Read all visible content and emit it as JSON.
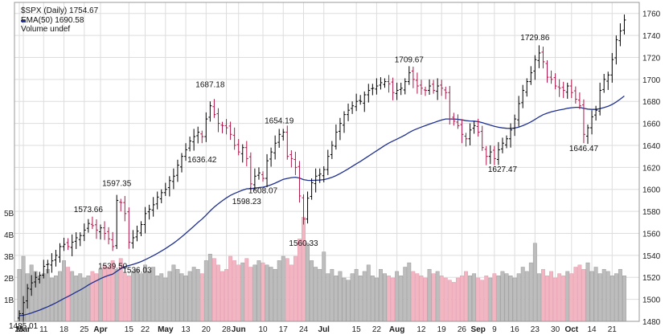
{
  "chart_data": {
    "type": "candlestick-ohlc-with-volume",
    "title": "$SPX (Daily) 1754.67",
    "legend": [
      {
        "text": "EMA(50) 1690.58",
        "color": "#1f2f8f"
      },
      {
        "text": "Volume undef",
        "color": "#888888"
      }
    ],
    "colors": {
      "up": "#000000",
      "down": "#b0144a",
      "ema": "#1f2f8f",
      "vol_up": "#bdbdbd",
      "vol_down": "#f2b6c2",
      "grid": "#dddddd"
    },
    "price_axis": {
      "min": 1480,
      "max": 1770,
      "ticks": [
        1480,
        1500,
        1520,
        1540,
        1560,
        1580,
        1600,
        1620,
        1640,
        1660,
        1680,
        1700,
        1720,
        1740,
        1760
      ]
    },
    "volume_axis": {
      "ticks": [
        {
          "v": 1,
          "label": "1B"
        },
        {
          "v": 2,
          "label": "2B"
        },
        {
          "v": 3,
          "label": "3B"
        },
        {
          "v": 4,
          "label": "4B"
        },
        {
          "v": 5,
          "label": "5B"
        }
      ]
    },
    "x_labels": [
      {
        "i": 0,
        "text": "25"
      },
      {
        "i": 1,
        "text": "Mar",
        "bold": true
      },
      {
        "i": 6,
        "text": "11"
      },
      {
        "i": 11,
        "text": "18"
      },
      {
        "i": 16,
        "text": "25"
      },
      {
        "i": 20,
        "text": "Apr",
        "bold": true
      },
      {
        "i": 27,
        "text": "15"
      },
      {
        "i": 31,
        "text": "22"
      },
      {
        "i": 36,
        "text": "May",
        "bold": true
      },
      {
        "i": 41,
        "text": "13"
      },
      {
        "i": 46,
        "text": "20"
      },
      {
        "i": 51,
        "text": "28"
      },
      {
        "i": 54,
        "text": "Jun",
        "bold": true
      },
      {
        "i": 60,
        "text": "10"
      },
      {
        "i": 65,
        "text": "17"
      },
      {
        "i": 70,
        "text": "24"
      },
      {
        "i": 75,
        "text": "Jul",
        "bold": true
      },
      {
        "i": 83,
        "text": "15"
      },
      {
        "i": 88,
        "text": "22"
      },
      {
        "i": 93,
        "text": "Aug",
        "bold": true
      },
      {
        "i": 99,
        "text": "12"
      },
      {
        "i": 104,
        "text": "19"
      },
      {
        "i": 109,
        "text": "26"
      },
      {
        "i": 113,
        "text": "Sep",
        "bold": true
      },
      {
        "i": 117,
        "text": "9"
      },
      {
        "i": 122,
        "text": "16"
      },
      {
        "i": 127,
        "text": "23"
      },
      {
        "i": 132,
        "text": "30"
      },
      {
        "i": 136,
        "text": "Oct",
        "bold": true
      },
      {
        "i": 141,
        "text": "14"
      },
      {
        "i": 146,
        "text": "21"
      }
    ],
    "annotations": [
      {
        "i": 1,
        "value": 1485.01,
        "text": "1485.01",
        "pos": "below"
      },
      {
        "i": 17,
        "value": 1573.66,
        "text": "1573.66",
        "pos": "above"
      },
      {
        "i": 24,
        "value": 1597.35,
        "text": "1597.35",
        "pos": "above"
      },
      {
        "i": 23,
        "value": 1539.5,
        "text": "1539.50",
        "pos": "below"
      },
      {
        "i": 29,
        "value": 1536.03,
        "text": "1536.03",
        "pos": "below"
      },
      {
        "i": 47,
        "value": 1687.18,
        "text": "1687.18",
        "pos": "above"
      },
      {
        "i": 45,
        "value": 1636.42,
        "text": "1636.42",
        "pos": "below"
      },
      {
        "i": 56,
        "value": 1598.23,
        "text": "1598.23",
        "pos": "below"
      },
      {
        "i": 60,
        "value": 1608.07,
        "text": "1608.07",
        "pos": "below"
      },
      {
        "i": 64,
        "value": 1654.19,
        "text": "1654.19",
        "pos": "above"
      },
      {
        "i": 70,
        "value": 1560.33,
        "text": "1560.33",
        "pos": "below"
      },
      {
        "i": 96,
        "value": 1709.67,
        "text": "1709.67",
        "pos": "above"
      },
      {
        "i": 119,
        "value": 1627.47,
        "text": "1627.47",
        "pos": "below"
      },
      {
        "i": 127,
        "value": 1729.86,
        "text": "1729.86",
        "pos": "above"
      },
      {
        "i": 139,
        "value": 1646.47,
        "text": "1646.47",
        "pos": "below"
      }
    ],
    "close": [
      1487,
      1497,
      1510,
      1515,
      1520,
      1522,
      1530,
      1532,
      1535,
      1540,
      1548,
      1550,
      1548,
      1552,
      1556,
      1558,
      1563,
      1569,
      1567,
      1563,
      1565,
      1560,
      1555,
      1548,
      1590,
      1588,
      1578,
      1552,
      1556,
      1562,
      1568,
      1578,
      1582,
      1586,
      1593,
      1597,
      1600,
      1608,
      1612,
      1622,
      1630,
      1636,
      1644,
      1648,
      1652,
      1648,
      1664,
      1676,
      1668,
      1660,
      1658,
      1656,
      1650,
      1640,
      1634,
      1638,
      1628,
      1605,
      1612,
      1615,
      1610,
      1626,
      1634,
      1642,
      1650,
      1652,
      1630,
      1628,
      1620,
      1594,
      1573,
      1592,
      1606,
      1612,
      1614,
      1618,
      1630,
      1640,
      1652,
      1660,
      1668,
      1672,
      1676,
      1680,
      1680,
      1686,
      1690,
      1692,
      1694,
      1697,
      1698,
      1696,
      1688,
      1690,
      1692,
      1698,
      1706,
      1700,
      1694,
      1692,
      1690,
      1694,
      1690,
      1694,
      1692,
      1688,
      1664,
      1662,
      1658,
      1650,
      1646,
      1654,
      1658,
      1652,
      1638,
      1630,
      1634,
      1628,
      1636,
      1642,
      1646,
      1654,
      1664,
      1678,
      1690,
      1698,
      1706,
      1718,
      1724,
      1716,
      1702,
      1700,
      1694,
      1692,
      1690,
      1694,
      1688,
      1682,
      1676,
      1650,
      1656,
      1666,
      1672,
      1690,
      1700,
      1704,
      1718,
      1736,
      1744,
      1754
    ]
  },
  "volume": [
    2.4,
    3.0,
    2.2,
    2.6,
    2.3,
    2.1,
    2.2,
    2.4,
    2.0,
    2.1,
    2.3,
    2.8,
    2.5,
    2.3,
    2.1,
    2.2,
    2.0,
    2.1,
    2.3,
    2.2,
    2.4,
    2.6,
    2.5,
    2.8,
    2.4,
    2.9,
    2.2,
    2.1,
    2.3,
    2.4,
    2.2,
    2.6,
    2.3,
    2.5,
    2.1,
    2.2,
    2.0,
    2.3,
    2.6,
    2.4,
    2.2,
    2.1,
    2.3,
    2.5,
    2.4,
    2.2,
    2.8,
    3.1,
    2.9,
    2.6,
    2.3,
    2.4,
    3.0,
    2.8,
    2.6,
    2.7,
    2.9,
    2.5,
    2.6,
    2.8,
    2.7,
    2.6,
    2.5,
    2.4,
    2.8,
    3.0,
    2.9,
    2.6,
    3.0,
    3.8,
    4.8,
    3.6,
    2.8,
    2.5,
    2.4,
    3.2,
    2.2,
    2.4,
    2.1,
    2.3,
    2.0,
    1.9,
    2.2,
    2.4,
    2.1,
    2.3,
    2.6,
    2.1,
    2.0,
    2.4,
    2.2,
    2.1,
    2.0,
    2.3,
    2.1,
    2.5,
    2.7,
    2.3,
    2.2,
    2.1,
    2.0,
    2.4,
    2.2,
    2.3,
    2.1,
    2.0,
    1.9,
    1.8,
    2.0,
    2.1,
    2.3,
    2.1,
    2.2,
    2.0,
    1.9,
    2.1,
    2.0,
    2.2,
    2.1,
    2.3,
    2.2,
    2.1,
    2.0,
    2.2,
    2.5,
    2.3,
    2.7,
    3.6,
    2.2,
    2.4,
    2.1,
    2.3,
    2.0,
    2.2,
    2.1,
    2.3,
    2.2,
    2.5,
    2.6,
    2.4,
    2.7,
    2.3,
    2.5,
    2.2,
    2.4,
    2.3,
    2.1,
    2.2,
    2.4,
    2.1
  ]
}
